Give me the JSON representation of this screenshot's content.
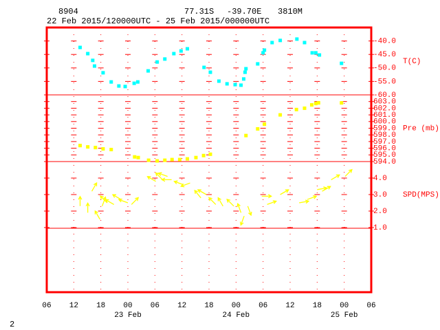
{
  "header": {
    "station": "8904",
    "lat": "77.31S",
    "lon": "-39.70E",
    "elev": "3810M",
    "period": "22 Feb 2015/120000UTC - 25 Feb 2015/000000UTC"
  },
  "footer": "2",
  "x_axis": {
    "xlim": [
      6,
      78
    ],
    "xticks": [
      {
        "value": 6,
        "label": "06"
      },
      12,
      18,
      {
        "value": 24,
        "label": "00"
      },
      {
        "value": 30,
        "label": "06"
      },
      {
        "value": 36,
        "label": "12"
      },
      {
        "value": 42,
        "label": "18"
      },
      {
        "value": 48,
        "label": "00"
      },
      {
        "value": 54,
        "label": "06"
      },
      {
        "value": 60,
        "label": "12"
      },
      {
        "value": 66,
        "label": "18"
      },
      {
        "value": 72,
        "label": "00"
      },
      {
        "value": 78,
        "label": "06"
      }
    ],
    "date_ticks": [
      {
        "value": 24,
        "label": "23 Feb"
      },
      {
        "value": 48,
        "label": "24 Feb"
      },
      {
        "value": 72,
        "label": "25 Feb"
      }
    ]
  },
  "chart_data": [
    {
      "type": "scatter",
      "y_label": "T(C)",
      "color": "#00ffff",
      "ylim": [
        -60,
        -35
      ],
      "yticks": [
        {
          "value": -40,
          "label": "-40.0"
        },
        {
          "value": -45,
          "label": "-45.0"
        },
        {
          "value": -50,
          "label": "-50.0"
        },
        {
          "value": -55,
          "label": "-55.0"
        },
        {
          "value": -60,
          "label": "-60.0"
        }
      ],
      "x": [
        13.4,
        15.1,
        16.2,
        16.6,
        18.5,
        20.3,
        22.0,
        23.4,
        25.4,
        26.2,
        28.5,
        30.5,
        32.2,
        34.2,
        35.8,
        37.2,
        40.9,
        42.3,
        44.2,
        46.0,
        47.8,
        49.1,
        49.7,
        50.0,
        50.2,
        52.8,
        54.0,
        54.3,
        56.0,
        57.8,
        61.5,
        63.2,
        64.9,
        65.7,
        66.5,
        71.4
      ],
      "values": [
        -42.4,
        -44.7,
        -47.2,
        -49.3,
        -51.8,
        -55.2,
        -56.7,
        -56.9,
        -55.7,
        -55.2,
        -51.1,
        -47.8,
        -46.7,
        -44.7,
        -43.7,
        -42.9,
        -49.8,
        -51.6,
        -54.9,
        -55.9,
        -56.2,
        -56.4,
        -54.1,
        -51.6,
        -50.3,
        -48.5,
        -44.4,
        -43.4,
        -40.6,
        -39.8,
        -39.3,
        -40.6,
        -44.4,
        -44.4,
        -45.2,
        -48.3
      ]
    },
    {
      "type": "scatter",
      "y_label": "Pre (mb)",
      "color": "#ffff00",
      "ylim": [
        594,
        604
      ],
      "yticks": [
        {
          "value": 603,
          "label": "603.0"
        },
        {
          "value": 602,
          "label": "602.0"
        },
        {
          "value": 601,
          "label": "601.0"
        },
        {
          "value": 600,
          "label": "600.0"
        },
        {
          "value": 599,
          "label": "599.0"
        },
        {
          "value": 598,
          "label": "598.0"
        },
        {
          "value": 597,
          "label": "597.0"
        },
        {
          "value": 596,
          "label": "596.0"
        },
        {
          "value": 595,
          "label": "595.0"
        },
        {
          "value": 594,
          "label": "594.0"
        }
      ],
      "x": [
        13.4,
        15.1,
        16.8,
        18.5,
        20.3,
        25.5,
        26.3,
        28.6,
        30.5,
        32.2,
        33.8,
        35.5,
        37.2,
        39.1,
        40.8,
        42.3,
        50.2,
        52.8,
        54.3,
        57.8,
        61.4,
        63.2,
        64.8,
        65.7,
        66.3,
        71.4
      ],
      "values": [
        596.4,
        596.2,
        596.1,
        595.9,
        595.8,
        594.7,
        594.6,
        594.2,
        594.1,
        594.2,
        594.3,
        594.3,
        594.4,
        594.6,
        594.9,
        595.1,
        597.9,
        598.9,
        599.6,
        601.0,
        601.8,
        602.0,
        602.5,
        602.7,
        602.8,
        602.8
      ]
    },
    {
      "type": "vector",
      "y_label": "SPD(MPS)",
      "color": "#ffff00",
      "ylim": [
        1,
        5
      ],
      "yticks": [
        {
          "value": 4,
          "label": "4.0"
        },
        {
          "value": 3,
          "label": "3.0"
        },
        {
          "value": 2,
          "label": "2.0"
        },
        {
          "value": 1,
          "label": "1.0"
        }
      ],
      "x": [
        13.4,
        15.1,
        16.0,
        17.8,
        18.3,
        19.4,
        20.9,
        22.5,
        24.0,
        24.8,
        30.2,
        31.7,
        32.8,
        33.7,
        36.3,
        37.8,
        40.2,
        41.4,
        43.5,
        45.1,
        47.5,
        49.1,
        49.8,
        50.6,
        53.7,
        54.9,
        57.8,
        62.0,
        63.8,
        66.0,
        67.1,
        69.1,
        72.2
      ],
      "values": [
        2.3,
        1.9,
        3.2,
        1.5,
        2.3,
        2.5,
        2.4,
        2.7,
        2.5,
        2.4,
        3.8,
        3.9,
        4.1,
        3.9,
        3.6,
        3.7,
        2.8,
        3.0,
        2.4,
        2.3,
        2.3,
        1.9,
        1.7,
        2.3,
        2.9,
        2.4,
        3.0,
        2.5,
        2.7,
        3.3,
        3.2,
        3.9,
        4.1
      ],
      "directions": [
        0,
        0,
        30,
        330,
        20,
        315,
        300,
        300,
        290,
        45,
        300,
        315,
        290,
        270,
        290,
        250,
        320,
        300,
        315,
        330,
        315,
        340,
        200,
        160,
        90,
        70,
        60,
        80,
        70,
        80,
        60,
        60,
        45
      ]
    }
  ]
}
